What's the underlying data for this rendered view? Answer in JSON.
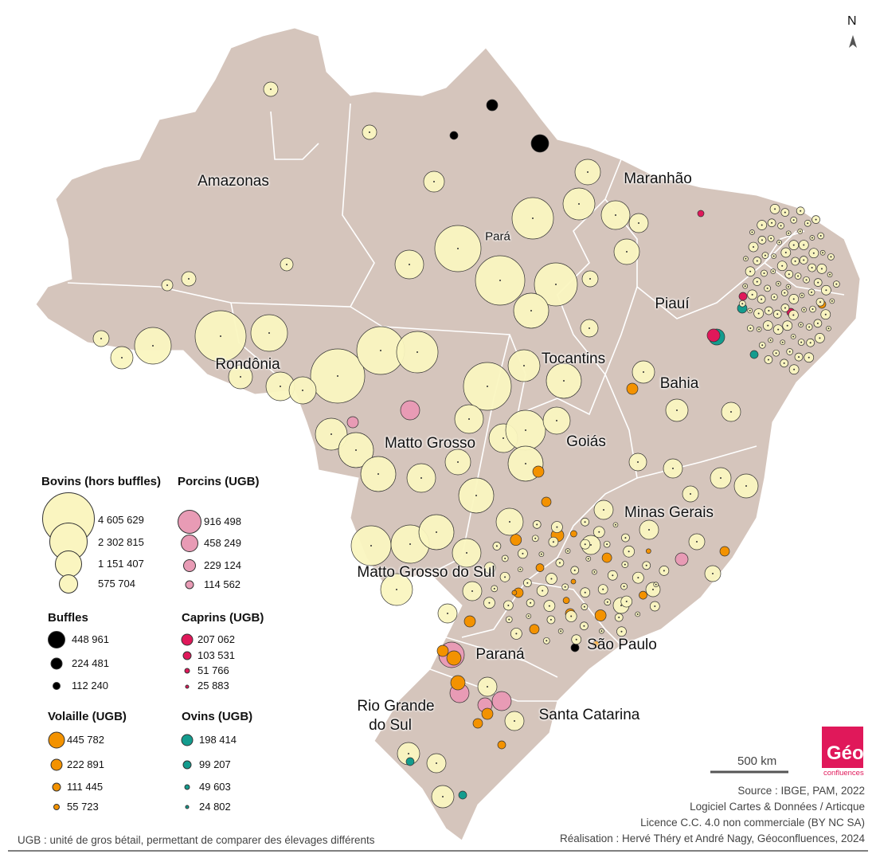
{
  "north_label": "N",
  "states": [
    {
      "name": "Amazonas"
    },
    {
      "name": "Pará"
    },
    {
      "name": "Maranhão"
    },
    {
      "name": "Piauí"
    },
    {
      "name": "Rondônia"
    },
    {
      "name": "Tocantins"
    },
    {
      "name": "Bahia"
    },
    {
      "name": "Goiás"
    },
    {
      "name": "Matto Grosso"
    },
    {
      "name": "Minas Gerais"
    },
    {
      "name": "Matto Grosso do Sul"
    },
    {
      "name": "São Paulo"
    },
    {
      "name": "Paraná"
    },
    {
      "name": "Santa Catarina"
    },
    {
      "name_line1": "Rio Grande",
      "name_line2": "do Sul"
    }
  ],
  "legend": {
    "bovins": {
      "title": "Bovins (hors buffles)",
      "color": "#faf5c0",
      "values": [
        "4 605 629",
        "2 302 815",
        "1 151 407",
        "575 704"
      ]
    },
    "porcins": {
      "title": "Porcins (UGB)",
      "color": "#e89bb5",
      "values": [
        "916 498",
        "458 249",
        "229 124",
        "114 562"
      ]
    },
    "buffles": {
      "title": "Buffles",
      "color": "#000000",
      "values": [
        "448 961",
        "224 481",
        "112 240"
      ]
    },
    "caprins": {
      "title": "Caprins (UGB)",
      "color": "#e0185a",
      "values": [
        "207 062",
        "103 531",
        "51 766",
        "25 883"
      ]
    },
    "volaille": {
      "title": "Volaille (UGB)",
      "color": "#f39200",
      "values": [
        "445 782",
        "222 891",
        "111 445",
        "55 723"
      ]
    },
    "ovins": {
      "title": "Ovins (UGB)",
      "color": "#139c8e",
      "values": [
        "198 414",
        "99 207",
        "49 603",
        "24 802"
      ]
    }
  },
  "footnote": "UGB : unité de gros bétail, permettant de comparer des élevages différents",
  "scale_label": "500 km",
  "logo": {
    "line1": "Géo",
    "line2": "confluences",
    "color": "#e0185a"
  },
  "credits": [
    "Source : IBGE, PAM, 2022",
    "Logiciel Cartes & Données / Articque",
    "Licence C.C. 4.0 non commerciale (BY NC SA)",
    "Réalisation : Hervé Théry et André Nagy, Géoconfluences, 2024"
  ],
  "colors": {
    "land": "#d5c5bc",
    "border": "#ffffff"
  }
}
